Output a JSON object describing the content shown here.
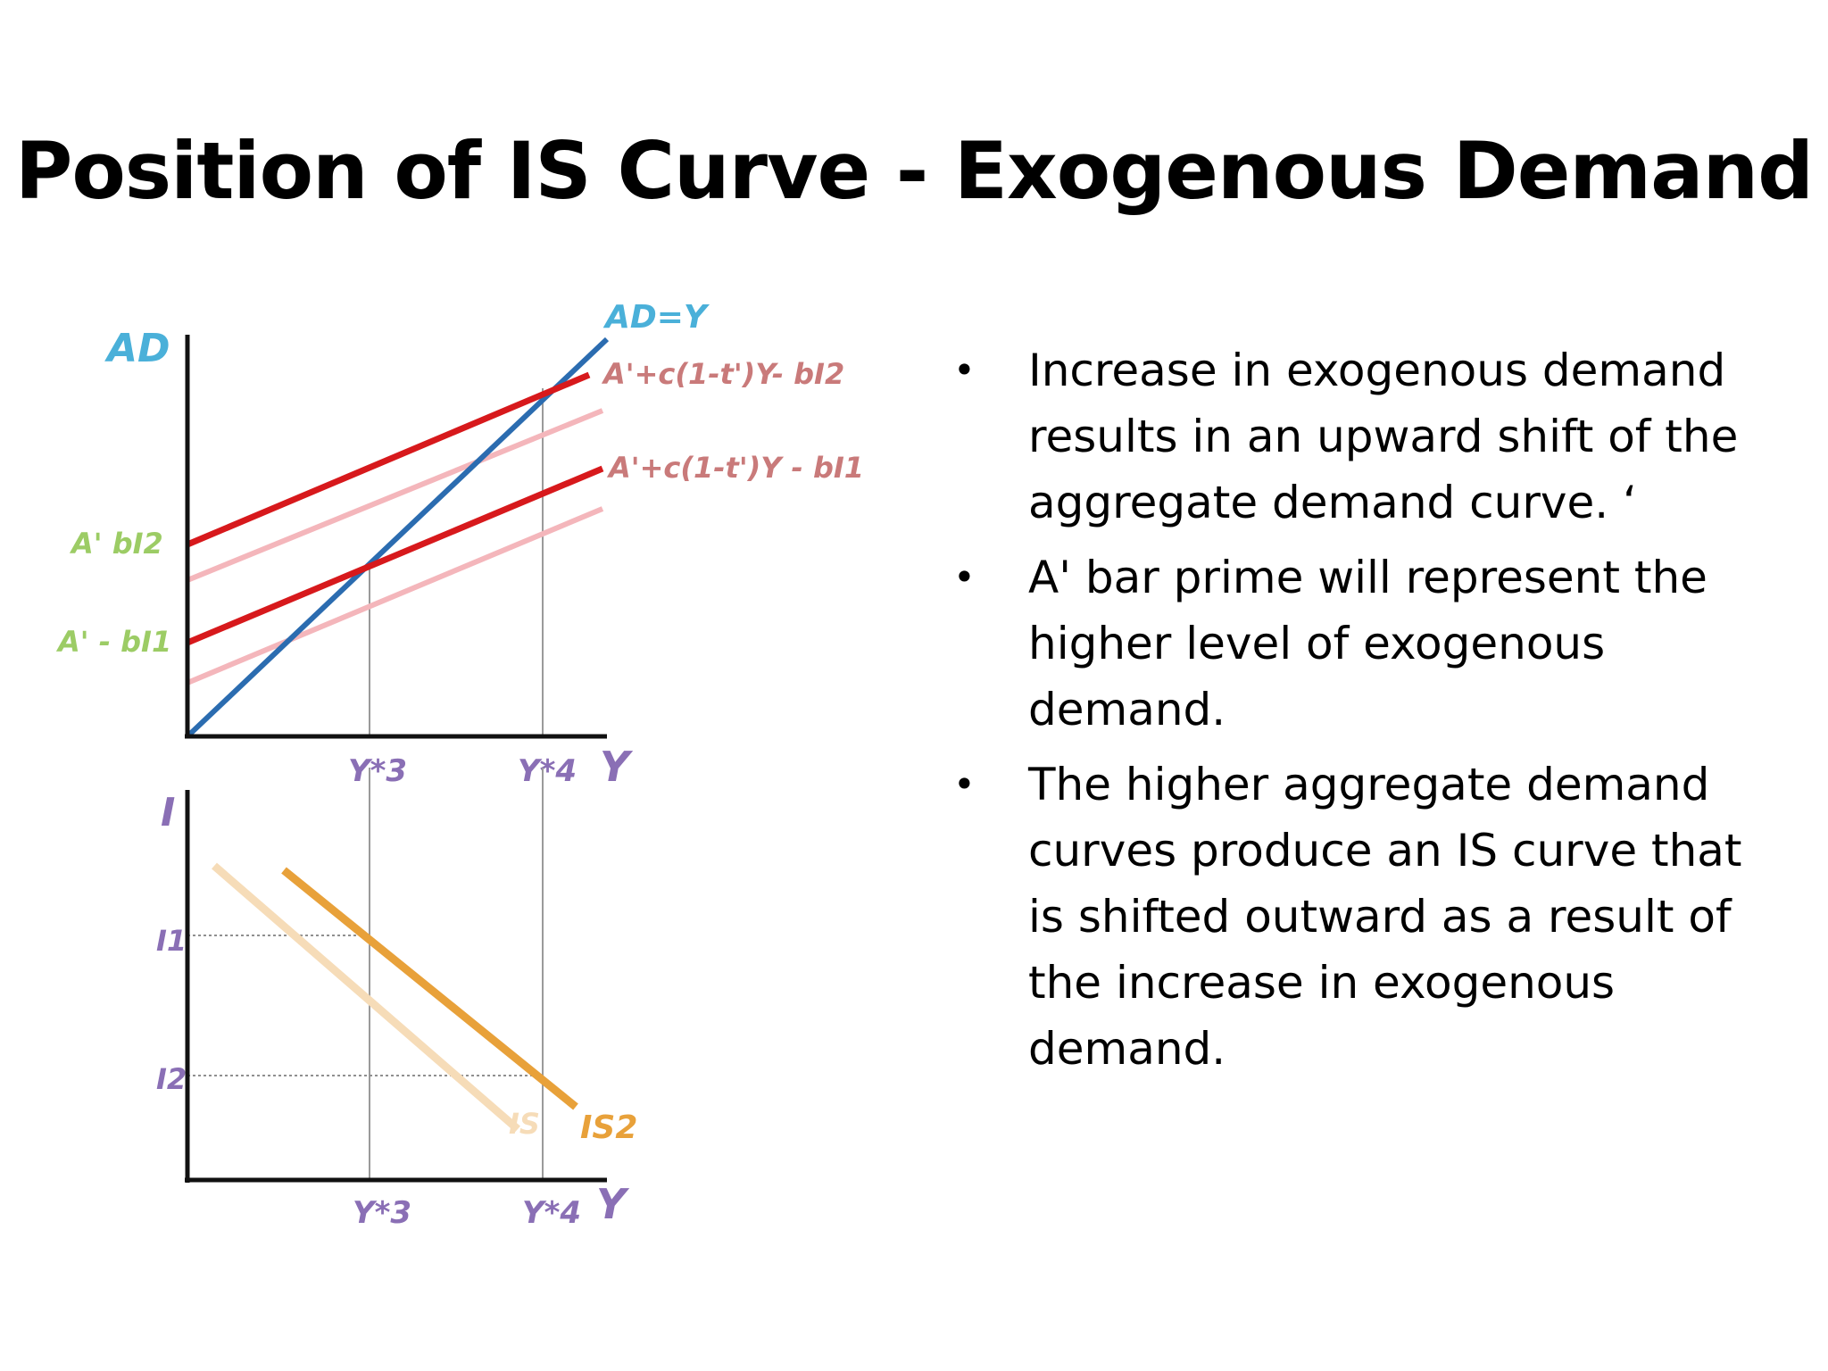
{
  "slide": {
    "title": "Position of IS Curve - Exogenous Demand"
  },
  "bullets": [
    {
      "text": " Increase in exogenous demand results in an upward shift of the aggregate demand curve. ‘"
    },
    {
      "text": "A' bar prime will represent the higher level of exogenous demand."
    },
    {
      "text": " The higher aggregate demand curves produce an IS curve that is shifted outward as a result of the increase in exogenous demand."
    }
  ],
  "diagram": {
    "top_panel": {
      "y_axis_label": "AD",
      "x_axis_label": "Y",
      "line_ad_eq_y": "AD=Y",
      "line_high": "A'+c(1-t')Y- bI2",
      "line_low": "A'+c(1-t')Y - bI1",
      "intercept_high": "A'  bI2",
      "intercept_low": "A' - bI1",
      "tick_y3": "Y*3",
      "tick_y4": "Y*4"
    },
    "bottom_panel": {
      "y_axis_label": "I",
      "x_axis_label": "Y",
      "tick_i1": "I1",
      "tick_i2": "I2",
      "tick_y3": "Y*3",
      "tick_y4": "Y*4",
      "curve_is1": "IS",
      "curve_is2": "IS2"
    },
    "colors": {
      "ad_curve": "#d7191c",
      "ad_faded": "#f4b6bb",
      "ad_eq_y": "#2b6cb0",
      "axis_label": "#4ab0d9",
      "is_curve": "#e8a13a",
      "is_faded": "#f6dcb8",
      "tick_label": "#8a6fb5",
      "intercept_label": "#9ccc65"
    }
  }
}
